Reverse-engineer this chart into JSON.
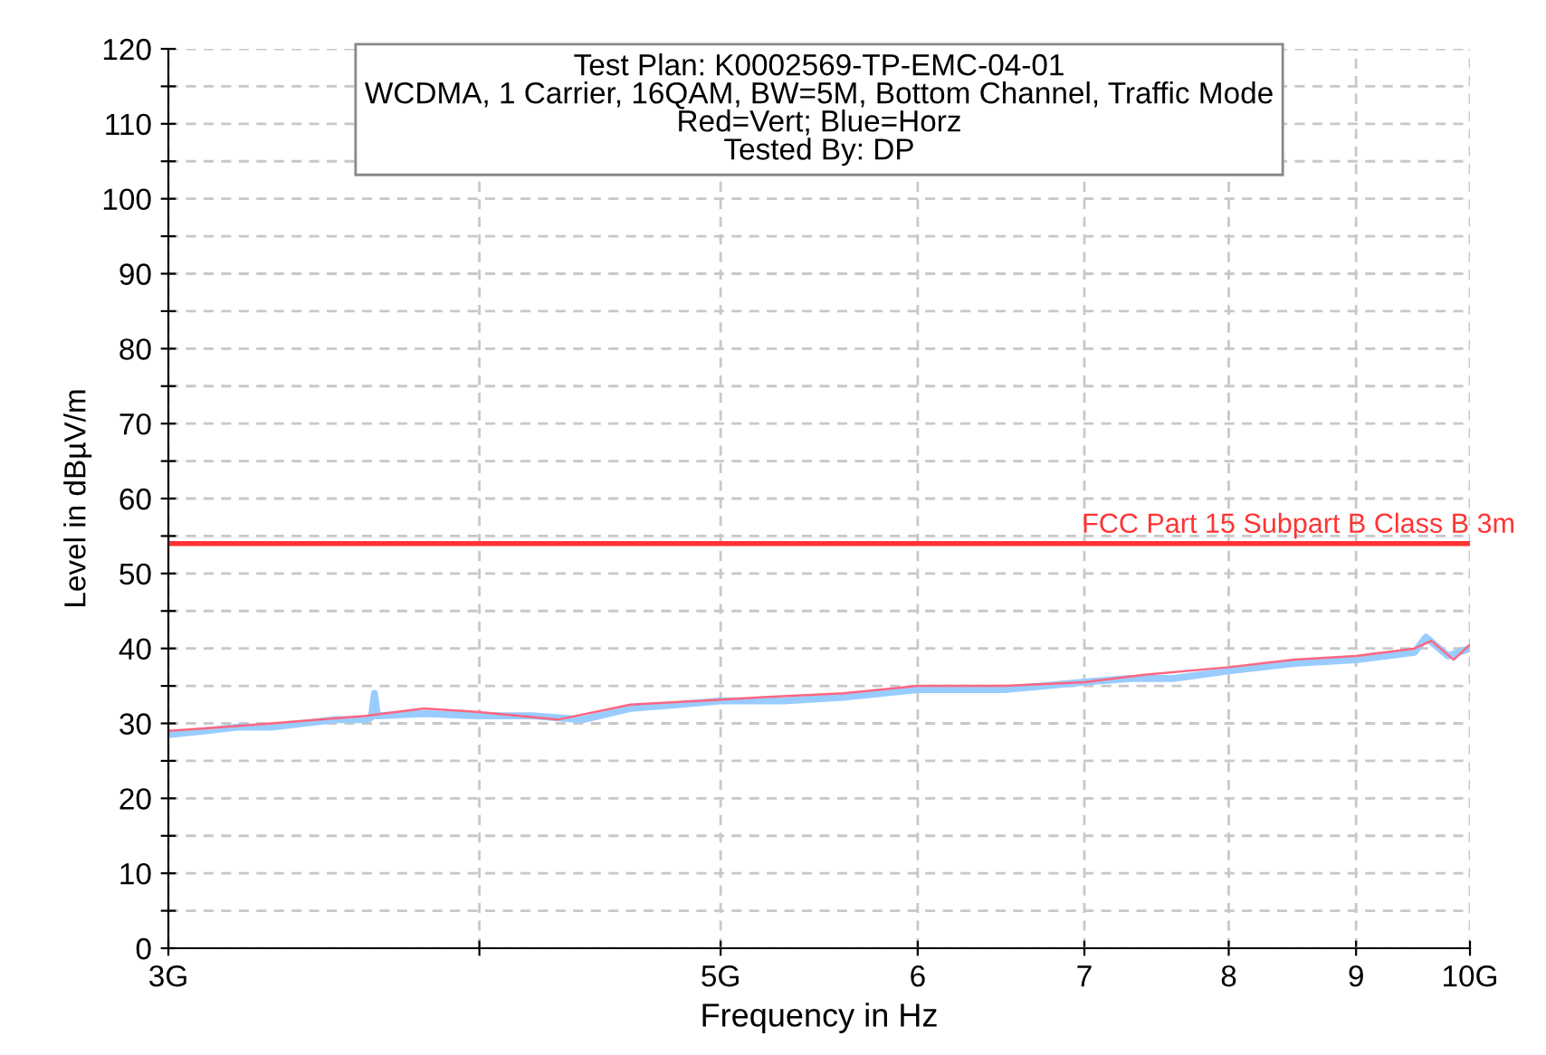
{
  "chart_data": {
    "type": "line",
    "title": "Test Plan: K0002569-TP-EMC-04-01\nWCDMA, 1 Carrier, 16QAM, BW=5M, Bottom Channel, Traffic Mode\nRed=Vert; Blue=Horz\nTested By: DP",
    "xlabel": "Frequency in Hz",
    "ylabel": "Level in dBµV/m",
    "log": "x",
    "xlim": [
      3,
      10
    ],
    "xticks": [
      {
        "value": 3,
        "label": "3G"
      },
      {
        "value": 4,
        "label": null
      },
      {
        "value": 5,
        "label": "5G"
      },
      6,
      7,
      8,
      9,
      {
        "value": 10,
        "label": "10G"
      }
    ],
    "ylim": [
      0,
      120
    ],
    "yticks": [
      0,
      {
        "value": 5,
        "label": null
      },
      10,
      {
        "value": 15,
        "label": null
      },
      20,
      {
        "value": 25,
        "label": null
      },
      30,
      {
        "value": 35,
        "label": null
      },
      40,
      {
        "value": 45,
        "label": null
      },
      50,
      {
        "value": 55,
        "label": null
      },
      60,
      {
        "value": 65,
        "label": null
      },
      70,
      {
        "value": 75,
        "label": null
      },
      80,
      {
        "value": 85,
        "label": null
      },
      90,
      {
        "value": 95,
        "label": null
      },
      100,
      {
        "value": 105,
        "label": null
      },
      110,
      {
        "value": 115,
        "label": null
      },
      120
    ],
    "grid": true,
    "series": [
      {
        "color": "#99ccff",
        "x": [
          3,
          3.1,
          3.2,
          3.3,
          3.4,
          3.5,
          3.6,
          3.62,
          3.63,
          3.64,
          3.8,
          4,
          4.2,
          4.4,
          4.6,
          4.8,
          5,
          5.3,
          5.6,
          6,
          6.5,
          7,
          7.3,
          7.6,
          8,
          8.5,
          9,
          9.5,
          9.6,
          9.8,
          10
        ],
        "values": [
          28.5,
          29,
          29.5,
          29.5,
          30,
          30.5,
          30.5,
          30.8,
          34,
          31,
          31.3,
          31,
          31,
          30.5,
          32,
          32.5,
          33,
          33,
          33.5,
          34.5,
          34.5,
          35.5,
          36,
          36,
          37,
          38,
          38.5,
          39.5,
          41.5,
          39,
          40
        ]
      },
      {
        "color": "#ff6680",
        "x": [
          3,
          3.15,
          3.3,
          3.45,
          3.6,
          3.8,
          4,
          4.3,
          4.6,
          4.9,
          5.2,
          5.6,
          6,
          6.5,
          7,
          7.4,
          8,
          8.5,
          9,
          9.5,
          9.65,
          9.85,
          10
        ],
        "values": [
          29,
          29.5,
          30,
          30.5,
          31,
          32,
          31.5,
          30.5,
          32.5,
          33,
          33.5,
          34,
          35,
          35,
          35.5,
          36.5,
          37.5,
          38.5,
          39,
          40,
          41,
          38.5,
          40.5
        ]
      }
    ],
    "ref_lines": [
      {
        "axis": "y",
        "value": 54,
        "label": "FCC Part 15 Subpart B Class B 3m",
        "color": "#ff3333"
      }
    ]
  }
}
